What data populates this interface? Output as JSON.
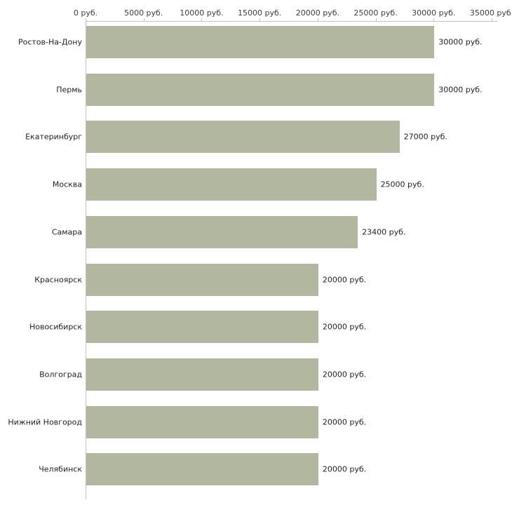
{
  "chart_data": {
    "type": "bar",
    "orientation": "horizontal",
    "title": "",
    "xlabel": "",
    "ylabel": "",
    "categories": [
      "Ростов-На-Дону",
      "Пермь",
      "Екатеринбург",
      "Москва",
      "Самара",
      "Красноярск",
      "Новосибирск",
      "Волгоград",
      "Нижний Новгород",
      "Челябинск"
    ],
    "values": [
      30000,
      30000,
      27000,
      25000,
      23400,
      20000,
      20000,
      20000,
      20000,
      20000
    ],
    "value_labels": [
      "30000 руб.",
      "30000 руб.",
      "27000 руб.",
      "25000 руб.",
      "23400 руб.",
      "20000 руб.",
      "20000 руб.",
      "20000 руб.",
      "20000 руб.",
      "20000 руб."
    ],
    "x_ticks": [
      0,
      5000,
      10000,
      15000,
      20000,
      25000,
      30000,
      35000
    ],
    "x_tick_labels": [
      "0 руб.",
      "5000 руб.",
      "10000 руб.",
      "15000 руб.",
      "20000 руб.",
      "25000 руб.",
      "30000 руб.",
      "35000 руб."
    ],
    "xlim": [
      0,
      35500
    ],
    "grid": false,
    "legend": "none",
    "bar_color": "#b2b89f",
    "axis_color": "#c2c2c2",
    "text_color": "#1f1f1f"
  }
}
